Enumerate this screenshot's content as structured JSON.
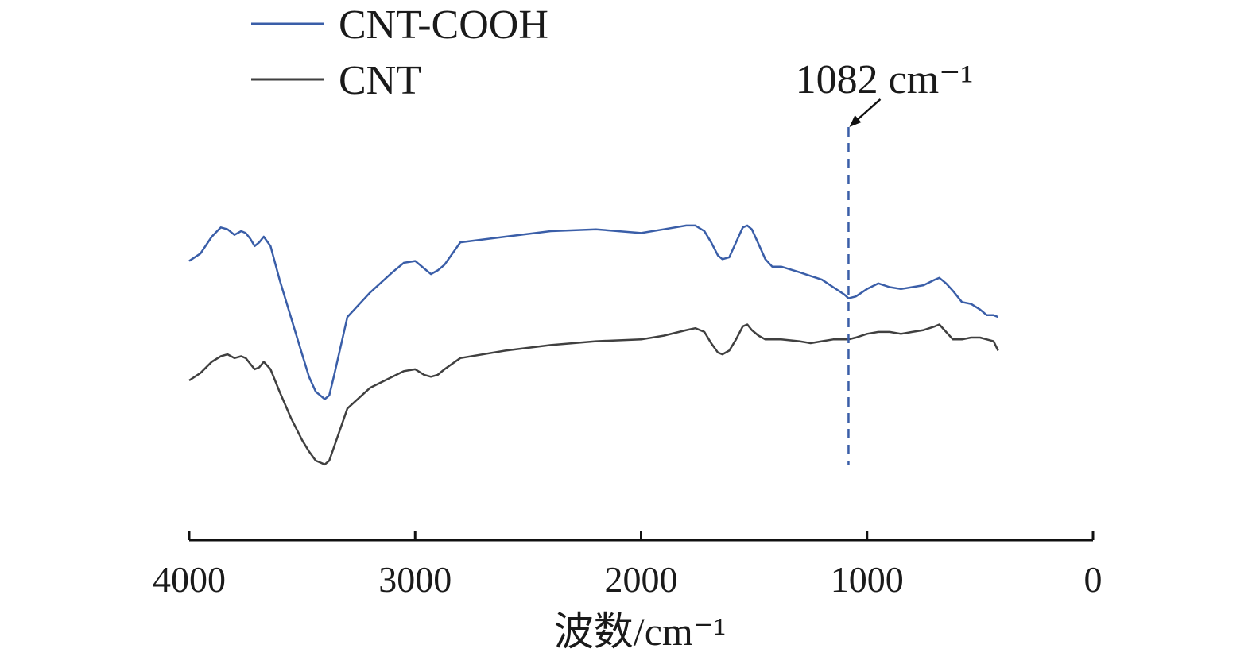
{
  "chart_data": {
    "type": "line",
    "xlabel": "波数/cm⁻¹",
    "ylabel": "",
    "title": "",
    "xlim": [
      4000,
      0
    ],
    "x_reversed": true,
    "x_ticks": [
      4000,
      3000,
      2000,
      1000,
      0
    ],
    "y_ticks_shown": false,
    "grid": false,
    "legend_position": "top-left",
    "annotation": {
      "text": "1082 cm⁻¹",
      "x": 1082
    },
    "series": [
      {
        "name": "CNT-COOH",
        "color": "#3a5ea8",
        "x": [
          4000,
          3950,
          3900,
          3860,
          3830,
          3800,
          3770,
          3750,
          3730,
          3710,
          3690,
          3670,
          3640,
          3600,
          3550,
          3500,
          3470,
          3440,
          3420,
          3400,
          3380,
          3360,
          3300,
          3200,
          3100,
          3050,
          3000,
          2960,
          2930,
          2900,
          2870,
          2800,
          2600,
          2400,
          2200,
          2000,
          1900,
          1800,
          1760,
          1720,
          1690,
          1660,
          1640,
          1610,
          1580,
          1550,
          1530,
          1510,
          1480,
          1450,
          1420,
          1380,
          1300,
          1250,
          1200,
          1150,
          1100,
          1082,
          1050,
          1000,
          950,
          900,
          850,
          800,
          750,
          700,
          680,
          650,
          620,
          580,
          540,
          500,
          470,
          440,
          420
        ],
        "y": [
          0.62,
          0.64,
          0.685,
          0.71,
          0.705,
          0.69,
          0.7,
          0.695,
          0.68,
          0.66,
          0.67,
          0.685,
          0.66,
          0.57,
          0.47,
          0.37,
          0.31,
          0.27,
          0.26,
          0.25,
          0.26,
          0.31,
          0.47,
          0.535,
          0.59,
          0.615,
          0.62,
          0.6,
          0.585,
          0.595,
          0.61,
          0.67,
          0.685,
          0.7,
          0.705,
          0.695,
          0.705,
          0.715,
          0.715,
          0.7,
          0.67,
          0.635,
          0.625,
          0.63,
          0.67,
          0.71,
          0.715,
          0.705,
          0.665,
          0.625,
          0.605,
          0.605,
          0.59,
          0.58,
          0.57,
          0.55,
          0.53,
          0.52,
          0.525,
          0.545,
          0.56,
          0.55,
          0.545,
          0.55,
          0.555,
          0.57,
          0.575,
          0.56,
          0.54,
          0.51,
          0.505,
          0.49,
          0.475,
          0.475,
          0.47
        ]
      },
      {
        "name": "CNT",
        "color": "#404040",
        "x": [
          4000,
          3950,
          3900,
          3860,
          3830,
          3800,
          3770,
          3750,
          3730,
          3710,
          3690,
          3670,
          3640,
          3600,
          3550,
          3500,
          3470,
          3440,
          3420,
          3400,
          3380,
          3360,
          3300,
          3200,
          3100,
          3050,
          3000,
          2960,
          2930,
          2900,
          2870,
          2800,
          2600,
          2400,
          2200,
          2000,
          1900,
          1800,
          1760,
          1720,
          1690,
          1660,
          1640,
          1610,
          1580,
          1550,
          1530,
          1510,
          1480,
          1450,
          1420,
          1380,
          1300,
          1250,
          1200,
          1150,
          1100,
          1082,
          1050,
          1000,
          950,
          900,
          850,
          800,
          750,
          700,
          680,
          650,
          620,
          580,
          540,
          500,
          470,
          440,
          420
        ],
        "y": [
          0.3,
          0.32,
          0.35,
          0.365,
          0.37,
          0.36,
          0.365,
          0.36,
          0.345,
          0.33,
          0.335,
          0.35,
          0.33,
          0.27,
          0.2,
          0.14,
          0.11,
          0.085,
          0.08,
          0.075,
          0.085,
          0.12,
          0.225,
          0.28,
          0.31,
          0.325,
          0.33,
          0.315,
          0.31,
          0.315,
          0.33,
          0.36,
          0.38,
          0.395,
          0.405,
          0.41,
          0.42,
          0.435,
          0.44,
          0.43,
          0.4,
          0.375,
          0.37,
          0.38,
          0.41,
          0.445,
          0.45,
          0.435,
          0.42,
          0.41,
          0.41,
          0.41,
          0.405,
          0.4,
          0.405,
          0.41,
          0.41,
          0.41,
          0.415,
          0.425,
          0.43,
          0.43,
          0.425,
          0.43,
          0.435,
          0.445,
          0.45,
          0.43,
          0.41,
          0.41,
          0.415,
          0.415,
          0.41,
          0.405,
          0.38
        ]
      }
    ]
  }
}
